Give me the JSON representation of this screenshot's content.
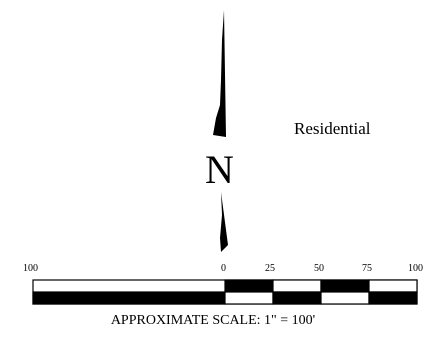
{
  "map": {
    "land_use_label": "Residential",
    "north_arrow": {
      "letter": "N",
      "icon": "north-arrow-icon"
    },
    "scale_bar": {
      "ticks": [
        "100",
        "0",
        "25",
        "50",
        "75",
        "100"
      ],
      "caption": "APPROXIMATE SCALE: 1\" = 100'"
    }
  }
}
